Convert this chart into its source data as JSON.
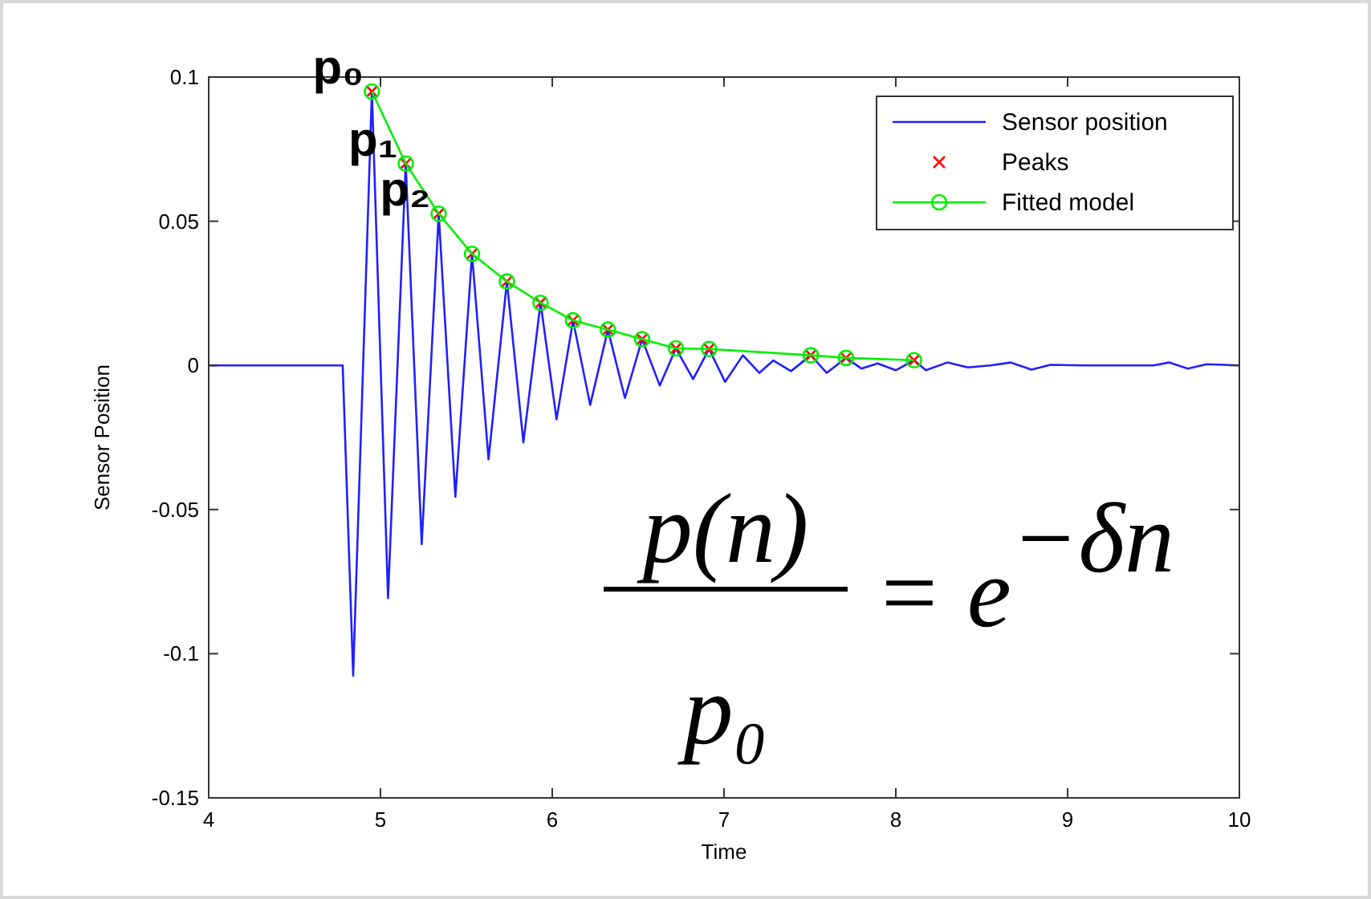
{
  "chart_data": {
    "type": "line",
    "xlabel": "Time",
    "ylabel": "Sensor Position",
    "xlim": [
      4,
      10
    ],
    "ylim": [
      -0.15,
      0.1
    ],
    "xticks": [
      4,
      5,
      6,
      7,
      8,
      9,
      10
    ],
    "yticks": [
      -0.15,
      -0.1,
      -0.05,
      0,
      0.05,
      0.1
    ],
    "grid": false,
    "legend": "top right",
    "series": [
      {
        "name": "Sensor position",
        "color": "#2020ff",
        "marker": "none",
        "x": [
          4,
          4.1,
          4.78,
          4.841,
          4.95,
          5.044,
          5.147,
          5.24,
          5.339,
          5.436,
          5.533,
          5.629,
          5.736,
          5.832,
          5.932,
          6.025,
          6.121,
          6.221,
          6.324,
          6.423,
          6.523,
          6.626,
          6.72,
          6.82,
          6.913,
          7.006,
          7.11,
          7.206,
          7.287,
          7.39,
          7.505,
          7.598,
          7.71,
          7.8,
          7.894,
          8.0,
          8.106,
          8.175,
          8.3,
          8.42,
          8.55,
          8.67,
          8.79,
          8.9,
          9.1,
          9.3,
          9.5,
          9.59,
          9.7,
          9.81,
          10
        ],
        "values": [
          0,
          0,
          0,
          -0.1076,
          0.095,
          -0.0807,
          0.07,
          -0.062,
          0.0526,
          -0.0456,
          0.0387,
          -0.0326,
          0.0291,
          -0.0267,
          0.0217,
          -0.0187,
          0.0156,
          -0.0137,
          0.0124,
          -0.0113,
          0.0091,
          -0.007,
          0.0059,
          -0.0048,
          0.0057,
          -0.0057,
          0.0035,
          -0.0026,
          0.0017,
          -0.002,
          0.0035,
          -0.0026,
          0.0026,
          -0.0011,
          0.0007,
          -0.0017,
          0.0018,
          -0.0017,
          0.001,
          -0.0007,
          0,
          0.001,
          -0.0015,
          0.0002,
          0,
          0,
          0,
          0.001,
          -0.0011,
          0.0004,
          0
        ]
      },
      {
        "name": "Peaks",
        "type": "scatter",
        "color": "#ff0000",
        "marker": "cross",
        "x": [
          4.95,
          5.147,
          5.339,
          5.533,
          5.736,
          5.932,
          6.121,
          6.324,
          6.523,
          6.72,
          6.913,
          7.505,
          7.71,
          8.106
        ],
        "values": [
          0.095,
          0.07,
          0.0526,
          0.0387,
          0.0291,
          0.0217,
          0.0156,
          0.0124,
          0.0091,
          0.0059,
          0.0057,
          0.0035,
          0.0026,
          0.0018
        ]
      },
      {
        "name": "Fitted model",
        "color": "#00ee00",
        "marker": "circle",
        "x": [
          4.95,
          5.147,
          5.339,
          5.533,
          5.736,
          5.932,
          6.121,
          6.324,
          6.523,
          6.72,
          6.913,
          7.505,
          7.71,
          8.106
        ],
        "values": [
          0.095,
          0.07,
          0.0526,
          0.0387,
          0.0291,
          0.0217,
          0.0156,
          0.0124,
          0.0091,
          0.0059,
          0.0057,
          0.0035,
          0.0026,
          0.0018
        ]
      }
    ],
    "annotations": [
      {
        "text": "p₀",
        "x": 4.95,
        "y": 0.095
      },
      {
        "text": "p₁",
        "x": 5.147,
        "y": 0.07
      },
      {
        "text": "p₂",
        "x": 5.339,
        "y": 0.0526
      },
      "p(n)",
      "p₀",
      "= e$^{−δn}$"
    ]
  }
}
